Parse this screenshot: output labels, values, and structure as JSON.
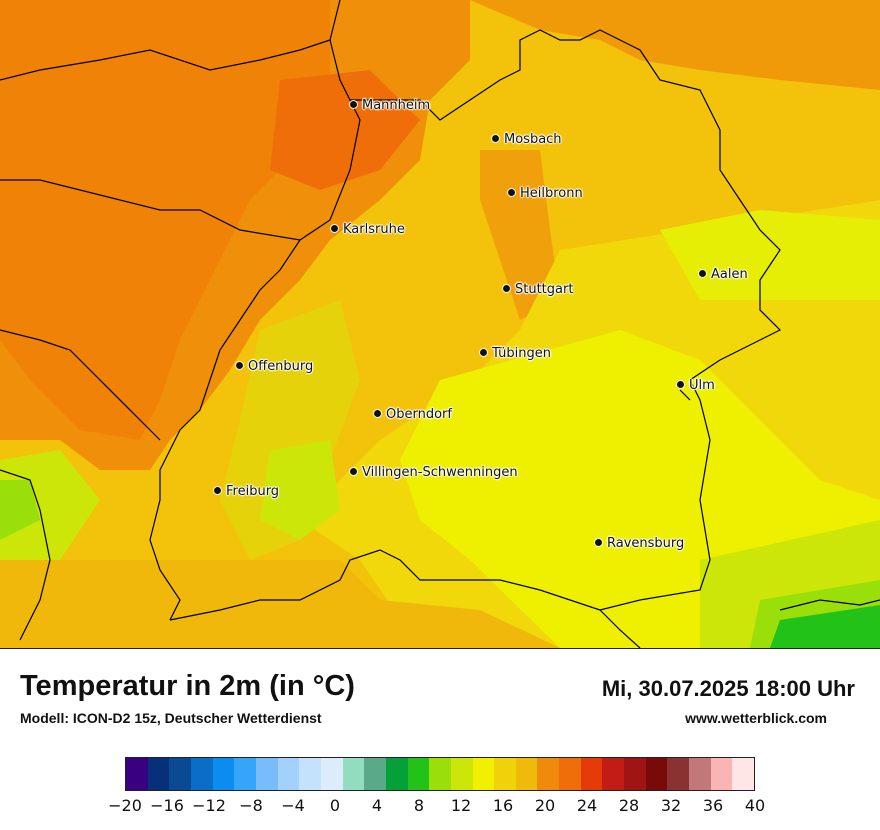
{
  "map": {
    "cities": [
      {
        "name": "Mannheim"
      },
      {
        "name": "Mosbach"
      },
      {
        "name": "Heilbronn"
      },
      {
        "name": "Karlsruhe"
      },
      {
        "name": "Aalen"
      },
      {
        "name": "Stuttgart"
      },
      {
        "name": "Tübingen"
      },
      {
        "name": "Offenburg"
      },
      {
        "name": "Ulm"
      },
      {
        "name": "Oberndorf"
      },
      {
        "name": "Villingen-Schwenningen"
      },
      {
        "name": "Freiburg"
      },
      {
        "name": "Ravensburg"
      }
    ]
  },
  "header": {
    "title": "Temperatur in 2m (in °C)",
    "model": "Modell: ICON-D2 15z, Deutscher Wetterdienst",
    "datetime": "Mi, 30.07.2025 18:00 Uhr",
    "website": "www.wetterblick.com"
  },
  "legend": {
    "colors": [
      "#3a0082",
      "#06307a",
      "#0a4a92",
      "#0a6ec8",
      "#0a8cf0",
      "#36a4f8",
      "#78bcfa",
      "#a2d2fc",
      "#c4e2fc",
      "#dcecfc",
      "#92dcc0",
      "#5aaa8a",
      "#06a038",
      "#22c218",
      "#9ade0a",
      "#cce60a",
      "#f0f000",
      "#f0d20a",
      "#f0ba0a",
      "#f08a0a",
      "#f06e0a",
      "#e63a0a",
      "#c21c14",
      "#a01414",
      "#780a0a",
      "#8a3232",
      "#c27878",
      "#fab4b4",
      "#ffe6e6"
    ],
    "ticks": [
      "−20",
      "−16",
      "−12",
      "−8",
      "−4",
      "0",
      "4",
      "8",
      "12",
      "16",
      "20",
      "24",
      "28",
      "32",
      "36",
      "40"
    ]
  }
}
